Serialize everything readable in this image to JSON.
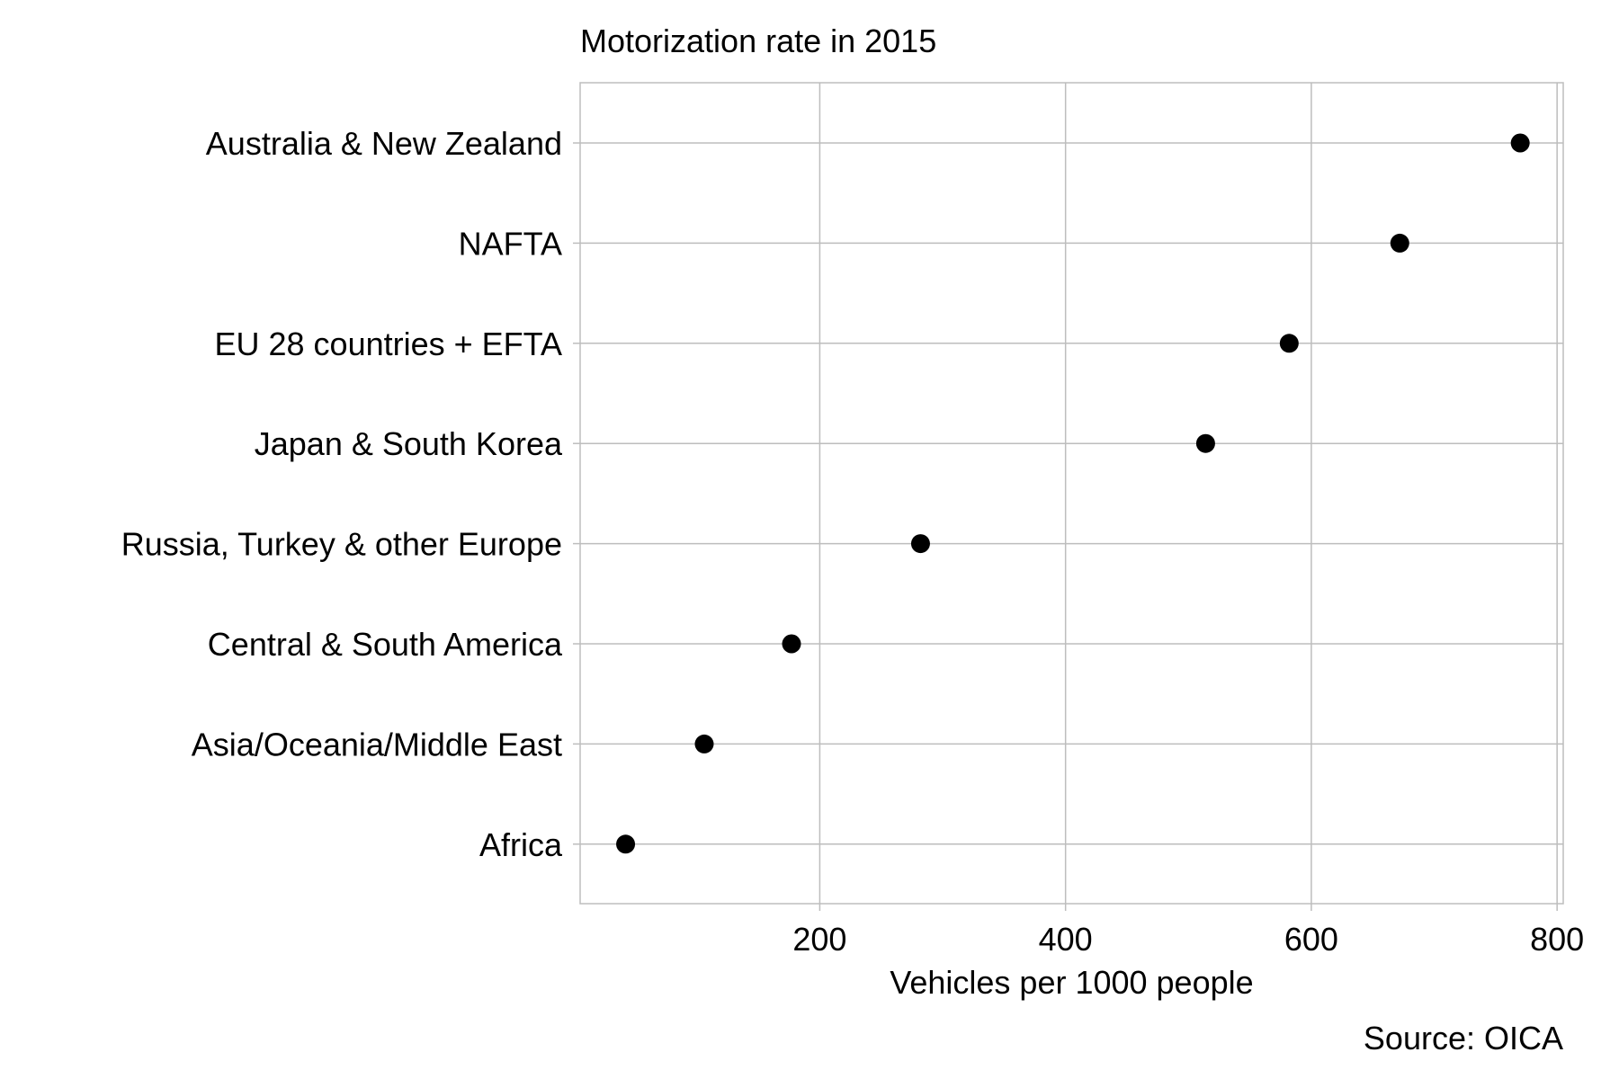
{
  "chart_data": {
    "type": "scatter",
    "title": "Motorization rate in 2015",
    "xlabel": "Vehicles per 1000 people",
    "ylabel": "",
    "caption": "Source: OICA",
    "xlim": [
      5,
      805
    ],
    "xticks": [
      200,
      400,
      600,
      800
    ],
    "grid": true,
    "legend": "none",
    "point_color": "#000000",
    "grid_color": "#bdbdbd",
    "categories": [
      "Australia & New Zealand",
      "NAFTA",
      "EU 28 countries + EFTA",
      "Japan & South Korea",
      "Russia, Turkey & other Europe",
      "Central & South America",
      "Asia/Oceania/Middle East",
      "Africa"
    ],
    "values": [
      770,
      672,
      582,
      514,
      282,
      177,
      106,
      42
    ]
  }
}
